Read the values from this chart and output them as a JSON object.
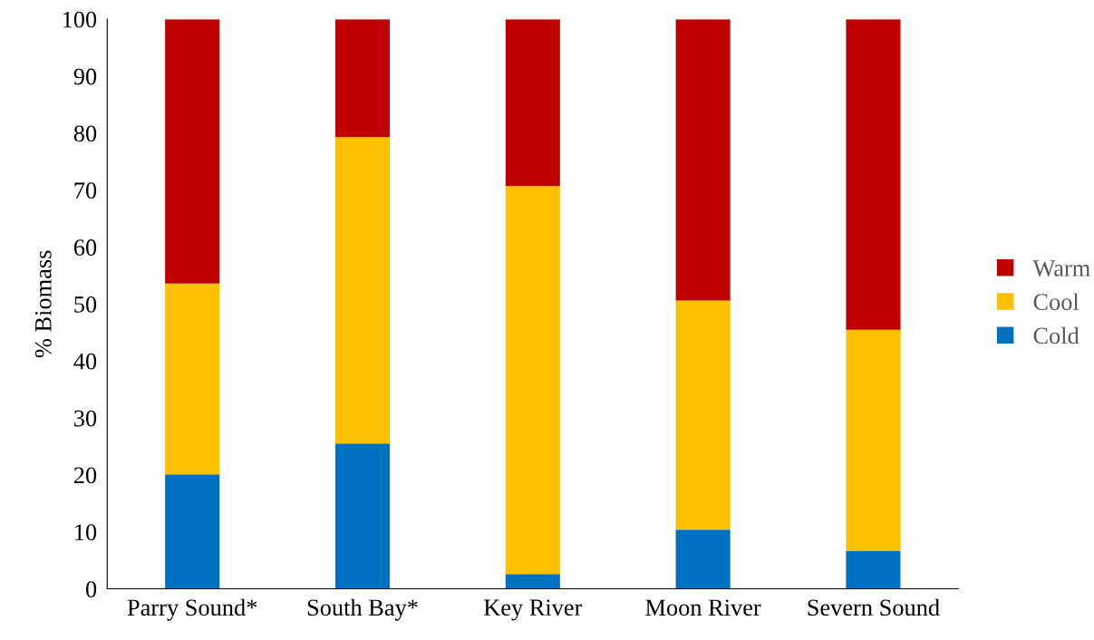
{
  "chart_data": {
    "type": "bar",
    "stacked": true,
    "ylabel": "% Biomass",
    "categories": [
      "Parry Sound*",
      "South Bay*",
      "Key River",
      "Moon River",
      "Severn Sound"
    ],
    "series": [
      {
        "name": "Cold",
        "color": "#0070c0",
        "values": [
          20.1,
          25.5,
          2.6,
          10.4,
          6.7
        ]
      },
      {
        "name": "Cool",
        "color": "#ffc000",
        "values": [
          33.5,
          53.8,
          68.1,
          40.2,
          38.8
        ]
      },
      {
        "name": "Warm",
        "color": "#c00000",
        "values": [
          46.4,
          20.7,
          29.3,
          49.4,
          54.5
        ]
      }
    ],
    "ylim": [
      0,
      100
    ],
    "yticks": [
      0,
      10,
      20,
      30,
      40,
      50,
      60,
      70,
      80,
      90,
      100
    ],
    "grid": false,
    "legend": "right"
  }
}
